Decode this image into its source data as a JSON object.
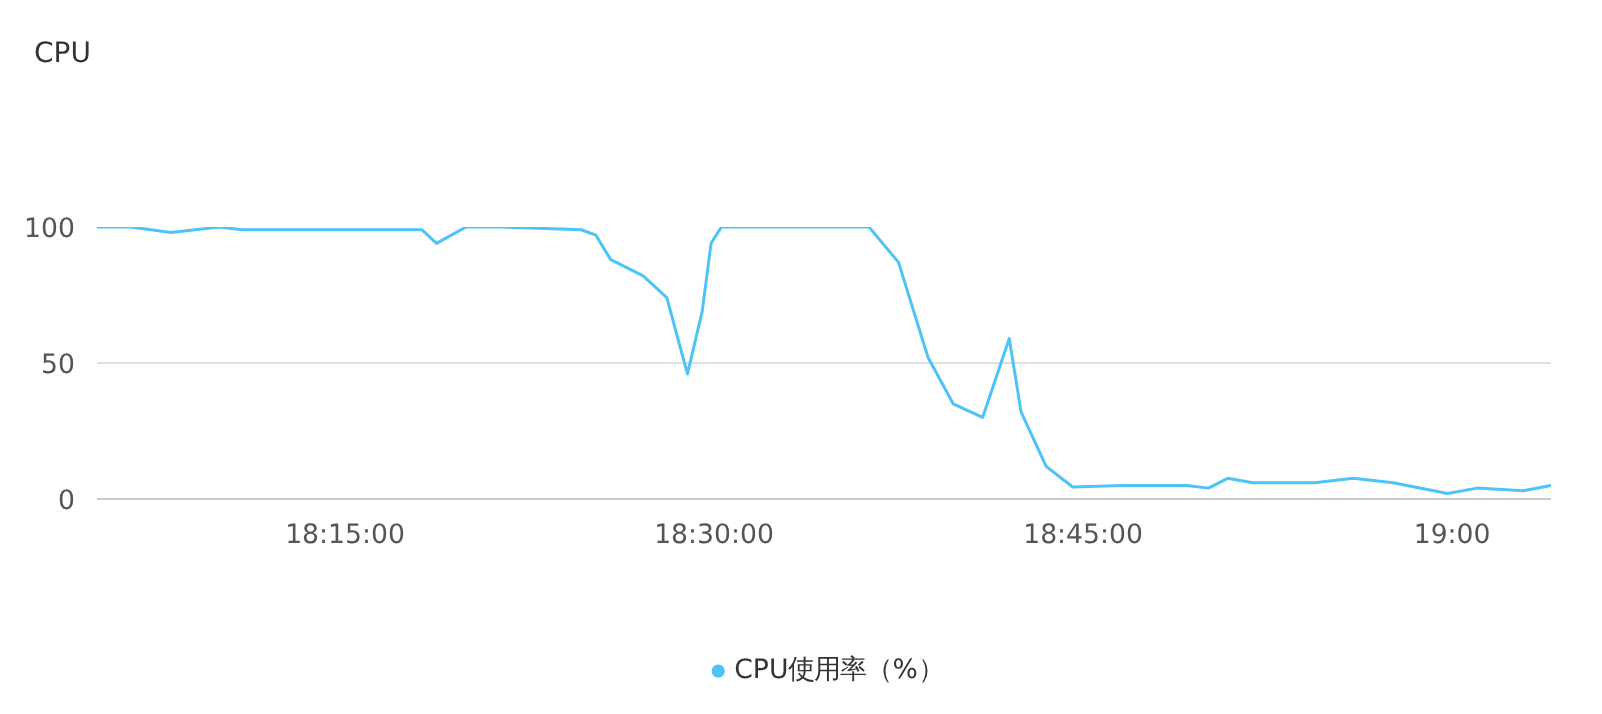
{
  "chart_data": {
    "type": "line",
    "title": "CPU",
    "x": [
      18.082,
      18.105,
      18.132,
      18.165,
      18.18,
      18.302,
      18.312,
      18.332,
      18.357,
      18.41,
      18.42,
      18.43,
      18.452,
      18.468,
      18.482,
      18.492,
      18.498,
      18.505,
      18.605,
      18.625,
      18.645,
      18.662,
      18.682,
      18.7,
      18.708,
      18.725,
      18.743,
      18.777,
      18.82,
      18.835,
      18.848,
      18.865,
      18.907,
      18.933,
      18.96,
      18.997,
      19.017,
      19.048,
      19.067
    ],
    "series": [
      {
        "name": "CPU使用率（%）",
        "color": "#4dc3f7",
        "values": [
          100,
          100,
          98,
          100,
          99,
          99,
          94,
          100,
          100,
          99,
          97,
          88,
          82,
          74,
          46,
          69,
          94,
          100,
          100,
          87,
          52,
          35,
          30,
          59,
          32,
          12,
          4.4,
          5,
          5,
          4,
          7.6,
          6,
          6,
          7.6,
          6,
          2,
          4,
          3,
          5
        ]
      }
    ],
    "xlim": [
      18.082,
      19.067
    ],
    "xticks": [
      {
        "value": 18.25,
        "label": "18:15:00"
      },
      {
        "value": 18.5,
        "label": "18:30:00"
      },
      {
        "value": 18.75,
        "label": "18:45:00"
      },
      {
        "value": 19.0,
        "label": "19:00"
      }
    ],
    "ylim": [
      0,
      100
    ],
    "yticks": [
      0,
      50,
      100
    ],
    "grid": "y",
    "legend": "bottom",
    "marker": "none",
    "line_style": "solid"
  }
}
